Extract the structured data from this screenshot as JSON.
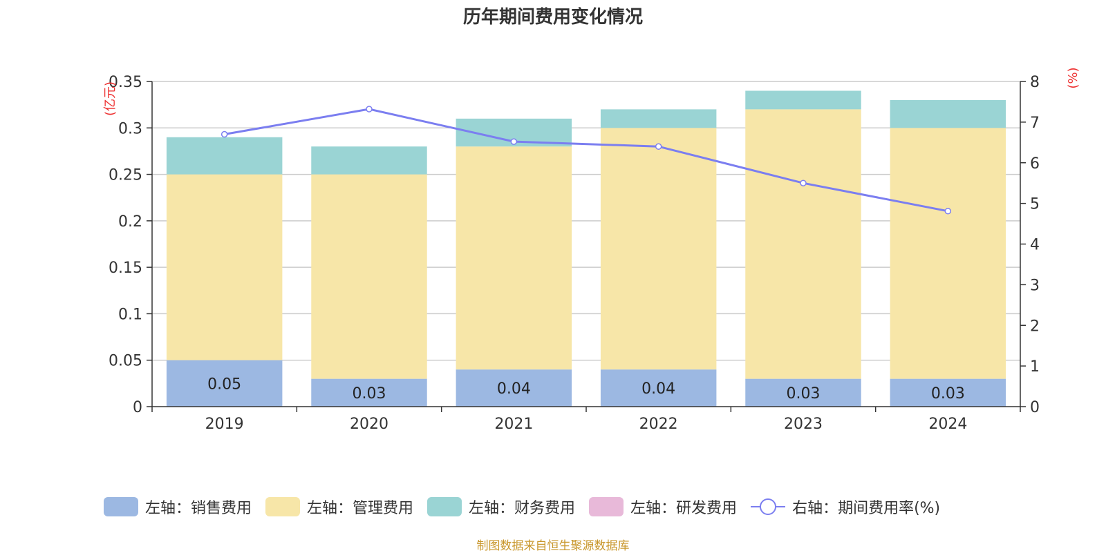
{
  "title": "历年期间费用变化情况",
  "source_note": "制图数据来自恒生聚源数据库",
  "chart_data": {
    "type": "bar",
    "stacked": true,
    "categories": [
      "2019",
      "2020",
      "2021",
      "2022",
      "2023",
      "2024"
    ],
    "left_axis": {
      "unit_label": "(亿元)",
      "range": [
        0,
        0.35
      ],
      "ticks": [
        "0",
        "0.05",
        "0.1",
        "0.15",
        "0.2",
        "0.25",
        "0.3",
        "0.35"
      ]
    },
    "right_axis": {
      "unit_label": "(%)",
      "range": [
        0,
        8
      ],
      "ticks": [
        "0",
        "1",
        "2",
        "3",
        "4",
        "5",
        "6",
        "7",
        "8"
      ]
    },
    "grid": true,
    "legend_position": "bottom",
    "series": [
      {
        "name": "左轴：销售费用",
        "color": "#9cb8e2",
        "values": [
          0.05,
          0.03,
          0.04,
          0.04,
          0.03,
          0.03
        ],
        "labels": [
          "0.05",
          "0.03",
          "0.04",
          "0.04",
          "0.03",
          "0.03"
        ]
      },
      {
        "name": "左轴：管理费用",
        "color": "#f7e6a8",
        "values": [
          0.2,
          0.22,
          0.24,
          0.26,
          0.29,
          0.27
        ]
      },
      {
        "name": "左轴：财务费用",
        "color": "#9ad4d4",
        "values": [
          0.04,
          0.03,
          0.03,
          0.02,
          0.02,
          0.03
        ]
      },
      {
        "name": "左轴：研发费用",
        "color": "#e8b9d9",
        "values": [
          0,
          0,
          0,
          0,
          0,
          0
        ]
      }
    ],
    "line_series": {
      "name": "右轴：期间费用率(%)",
      "color": "#7b7ef0",
      "axis": "right",
      "values": [
        6.7,
        7.32,
        6.52,
        6.4,
        5.5,
        4.81
      ]
    }
  }
}
